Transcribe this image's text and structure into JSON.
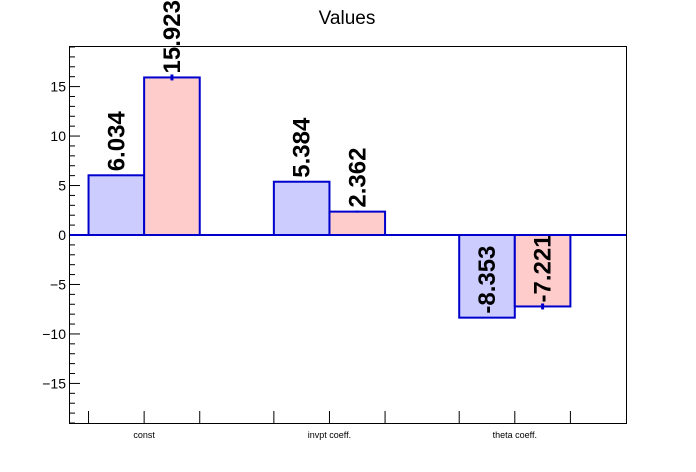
{
  "chart_data": {
    "type": "bar",
    "title": "Values",
    "xlabel": "",
    "ylabel": "",
    "categories": [
      "const",
      "invpt coeff.",
      "theta coeff."
    ],
    "series": [
      {
        "values": [
          6.034,
          5.384,
          -8.353
        ],
        "labels": [
          "6.034",
          "5.384",
          "-8.353"
        ],
        "errors": [
          0,
          0,
          0
        ],
        "fill": "#ccccff",
        "stroke": "#0000cc"
      },
      {
        "values": [
          15.923,
          2.362,
          -7.221
        ],
        "labels": [
          "15.923",
          "2.362",
          "-7.221"
        ],
        "errors": [
          0.3,
          0.1,
          0.3
        ],
        "fill": "#ffcccc",
        "stroke": "#0000cc"
      }
    ],
    "ylim": [
      -19,
      19
    ],
    "yticks": [
      -15,
      -10,
      -5,
      0,
      5,
      10,
      15
    ],
    "ytick_labels": [
      "−15",
      "−10",
      "−5",
      "0",
      "5",
      "10",
      "15"
    ],
    "grid": false,
    "legend": "none"
  }
}
